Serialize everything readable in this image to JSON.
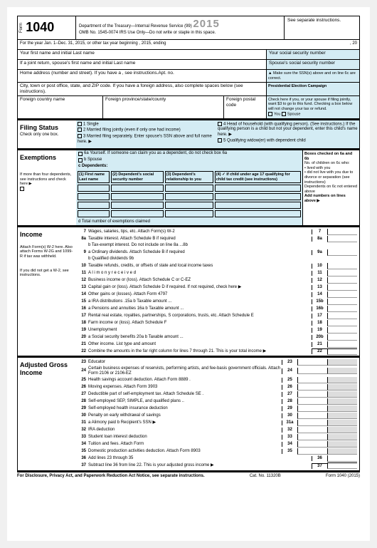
{
  "header": {
    "form_label": "Form",
    "form_number": "1040",
    "year": "2015",
    "dept": "Department of the Treasury—Internal Revenue Service (99)",
    "omb": "OMB No. 1545-0074",
    "irs_note": "IRS Use Only—Do not write or staple in this space.",
    "instructions": "See separate instructions."
  },
  "period": "For the year Jan. 1–Dec. 31, 2015, or other tax year beginning , 2015, ending",
  "period_end": ", 20",
  "names": {
    "first_label": "Your first name and initial Last name",
    "ssn_label": "Your social security number",
    "spouse_label": "If a joint return, spouse's first name and initial Last name",
    "spouse_ssn": "Spouse's social security number",
    "address": "Home address (number and street). If you have a , see instructions.Apt. no.",
    "city": "City, town or post office, state, and ZIP code. If you have a foreign address, also complete spaces below (see instructions).",
    "foreign_country": "Foreign country name",
    "foreign_prov": "Foreign province/state/county",
    "foreign_postal": "Foreign postal code",
    "ssn_warn": "▲ Make sure the SSN(s) above and on line 6c are correct.",
    "campaign_title": "Presidential Election Campaign",
    "campaign_text": "Check here if you, or your spouse if filing jointly, want $3 to go to this fund. Checking a box below will not change your tax or refund.",
    "you": "You",
    "spouse": "Spouse"
  },
  "filing": {
    "title": "Filing Status",
    "sub": "Check only one box.",
    "opts": [
      "1 Single",
      "2 Married filing jointly (even if only one had income)",
      "3 Married filing separately. Enter spouse's SSN above and full name here. ▶",
      "4 Head of household (with qualifying person). (See instructions.) If the qualifying person is a child but not your dependent, enter this child's name here. ▶",
      "5 Qualifying widow(er) with dependent child"
    ]
  },
  "exemptions": {
    "title": "Exemptions",
    "a": "6a Yourself. If someone can claim you as a dependent, do not check box 6a",
    "b": "b Spouse",
    "c": "c  Dependents:",
    "cols": [
      "(1) First name    Last name",
      "(2) Dependent's social security number",
      "(3) Dependent's relationship to you",
      "(4) ✓ if child under age 17 qualifying for child tax credit (see instructions)"
    ],
    "more": "If more than four dependents, see instructions and check here ▶",
    "d": "d Total number of exemptions claimed",
    "right_title": "Boxes checked on 6a and 6b",
    "right_items": [
      "No. of children on 6c who:",
      "• lived with you",
      "• did not live with you due to divorce or separation (see instructions)",
      "Dependents on 6c not entered above",
      "Add numbers on lines above ▶"
    ]
  },
  "income": {
    "title": "Income",
    "attach": "Attach Form(s) W-2 here. Also attach Forms W-2G and 1099-R if tax was withheld.",
    "noW2": "If you did not get a W-2, see instructions.",
    "lines": [
      {
        "n": "7",
        "t": "Wages, salaries, tips, etc. Attach Form(s) W-2",
        "b": "7"
      },
      {
        "n": "8a",
        "t": "Taxable interest. Attach Schedule B if required",
        "b": "8a"
      },
      {
        "n": "",
        "t": "b Tax-exempt interest. Do not include on line 8a ...8b"
      },
      {
        "n": "9",
        "t": "a Ordinary dividends. Attach Schedule B if required",
        "b": "9a"
      },
      {
        "n": "",
        "t": "b Qualified dividends  9b"
      },
      {
        "n": "10",
        "t": "Taxable refunds, credits, or offsets of state and local income taxes",
        "b": "10"
      },
      {
        "n": "11",
        "t": "A l i m o n y   r e c e i v e d",
        "b": "11"
      },
      {
        "n": "12",
        "t": "Business income or (loss). Attach Schedule C or C-EZ",
        "b": "12"
      },
      {
        "n": "13",
        "t": "Capital gain or (loss). Attach Schedule D if required. If not required, check here ▶",
        "b": "13"
      },
      {
        "n": "14",
        "t": "Other gains or (losses). Attach Form 4797",
        "b": "14"
      },
      {
        "n": "15",
        "t": "a IRA distributions .15a b                                    Taxable amount ...",
        "b": "15b"
      },
      {
        "n": "16",
        "t": "a   Pensions and annuities  16a b                          Taxable amount ...",
        "b": "16b"
      },
      {
        "n": "17",
        "t": "Rental real estate, royalties, partnerships, S corporations, trusts, etc. Attach Schedule E",
        "b": "17"
      },
      {
        "n": "18",
        "t": "Farm income or (loss). Attach Schedule F",
        "b": "18"
      },
      {
        "n": "19",
        "t": "Unemployment",
        "b": "19"
      },
      {
        "n": "20",
        "t": "a Social security benefits  20a b                            Taxable amount ...",
        "b": "20b"
      },
      {
        "n": "21",
        "t": "Other income. List type and amount",
        "b": "21"
      },
      {
        "n": "22",
        "t": "Combine the amounts in the far right column for lines 7 through 21. This is your total income ▶",
        "b": "22",
        "total": true
      }
    ]
  },
  "agi": {
    "title": "Adjusted Gross Income",
    "lines": [
      {
        "n": "23",
        "t": "Educator",
        "b": "23",
        "mid": true
      },
      {
        "n": "24",
        "t": "Certain business expenses of reservists, performing artists, and fee-basis government officials. Attach Form 2106 or 2106-EZ",
        "b": "24",
        "mid": true
      },
      {
        "n": "25",
        "t": "Health savings account deduction. Attach Form 8889 .",
        "b": "25",
        "mid": true
      },
      {
        "n": "26",
        "t": "Moving expenses. Attach Form 3903",
        "b": "26",
        "mid": true
      },
      {
        "n": "27",
        "t": "Deductible part of self-employment tax. Attach Schedule SE .",
        "b": "27",
        "mid": true
      },
      {
        "n": "28",
        "t": "Self-employed SEP, SIMPLE, and qualified plans ..",
        "b": "28",
        "mid": true
      },
      {
        "n": "29",
        "t": "Self-employed health insurance deduction",
        "b": "29",
        "mid": true
      },
      {
        "n": "30",
        "t": "Penalty on early withdrawal of savings",
        "b": "30",
        "mid": true
      },
      {
        "n": "31",
        "t": "a  Alimony paid  b Recipient's SSN ▶",
        "b": "31a",
        "mid": true
      },
      {
        "n": "32",
        "t": "IRA deduction",
        "b": "32",
        "mid": true
      },
      {
        "n": "33",
        "t": "Student loan interest deduction",
        "b": "33",
        "mid": true
      },
      {
        "n": "34",
        "t": "Tuition and fees. Attach Form",
        "b": "34",
        "mid": true
      },
      {
        "n": "35",
        "t": "Domestic production activities deduction. Attach Form 8903",
        "b": "35",
        "mid": true
      },
      {
        "n": "36",
        "t": "Add lines 23 through 35",
        "b": "36"
      },
      {
        "n": "37",
        "t": "Subtract line 36 from line 22. This is your adjusted gross income ▶",
        "b": "37",
        "total": true
      }
    ]
  },
  "footer": {
    "disclosure": "For Disclosure, Privacy Act, and Paperwork Reduction Act Notice, see separate instructions.",
    "cat": "Cat. No. 11320B",
    "form": "Form 1040 (2015)"
  }
}
